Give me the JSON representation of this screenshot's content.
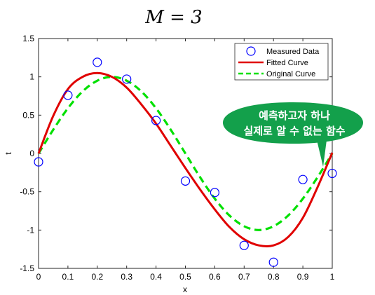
{
  "chart_data": {
    "type": "line",
    "title": "M = 3",
    "xlabel": "x",
    "ylabel": "t",
    "xlim": [
      0,
      1
    ],
    "ylim": [
      -1.5,
      1.5
    ],
    "xticks": [
      0,
      0.1,
      0.2,
      0.3,
      0.4,
      0.5,
      0.6,
      0.7,
      0.8,
      0.9,
      1
    ],
    "xtick_labels": [
      "0",
      "0.1",
      "0.2",
      "0.3",
      "0.4",
      "0.5",
      "0.6",
      "0.7",
      "0.8",
      "0.9",
      "1"
    ],
    "yticks": [
      -1.5,
      -1,
      -0.5,
      0,
      0.5,
      1,
      1.5
    ],
    "ytick_labels": [
      "-1.5",
      "-1",
      "-0.5",
      "0",
      "0.5",
      "1",
      "1.5"
    ],
    "grid": false,
    "legend_placement": "top-right",
    "series": [
      {
        "name": "Measured Data",
        "style": "markers",
        "marker": "circle-open",
        "color": "#0000ff",
        "x": [
          0,
          0.1,
          0.2,
          0.3,
          0.4,
          0.5,
          0.6,
          0.7,
          0.8,
          0.9,
          1
        ],
        "y": [
          -0.11,
          0.76,
          1.19,
          0.97,
          0.43,
          -0.36,
          -0.51,
          -1.2,
          -1.42,
          -0.34,
          -0.26
        ]
      },
      {
        "name": "Fitted Curve",
        "style": "solid",
        "color": "#e00000",
        "x": [
          0,
          0.05,
          0.1,
          0.15,
          0.2,
          0.25,
          0.3,
          0.35,
          0.4,
          0.45,
          0.5,
          0.55,
          0.6,
          0.65,
          0.7,
          0.75,
          0.8,
          0.85,
          0.9,
          0.95,
          1
        ],
        "y": [
          0,
          0.49,
          0.84,
          1.0,
          1.05,
          1.0,
          0.86,
          0.64,
          0.39,
          0.1,
          -0.19,
          -0.47,
          -0.73,
          -0.96,
          -1.12,
          -1.2,
          -1.2,
          -1.09,
          -0.84,
          -0.44,
          0.01
        ]
      },
      {
        "name": "Original Curve",
        "style": "dashed",
        "color": "#00e000",
        "x": [
          0,
          0.05,
          0.1,
          0.15,
          0.2,
          0.25,
          0.3,
          0.35,
          0.4,
          0.45,
          0.5,
          0.55,
          0.6,
          0.65,
          0.7,
          0.75,
          0.8,
          0.85,
          0.9,
          0.95,
          1
        ],
        "y": [
          0,
          0.31,
          0.59,
          0.81,
          0.95,
          1.0,
          0.95,
          0.81,
          0.59,
          0.31,
          0,
          -0.31,
          -0.59,
          -0.81,
          -0.95,
          -1.0,
          -0.95,
          -0.81,
          -0.59,
          -0.31,
          0
        ]
      }
    ],
    "annotation": {
      "lines": [
        "예측하고자 하나",
        "실제로 알 수 없는 함수"
      ],
      "fill": "#13a04b"
    }
  }
}
